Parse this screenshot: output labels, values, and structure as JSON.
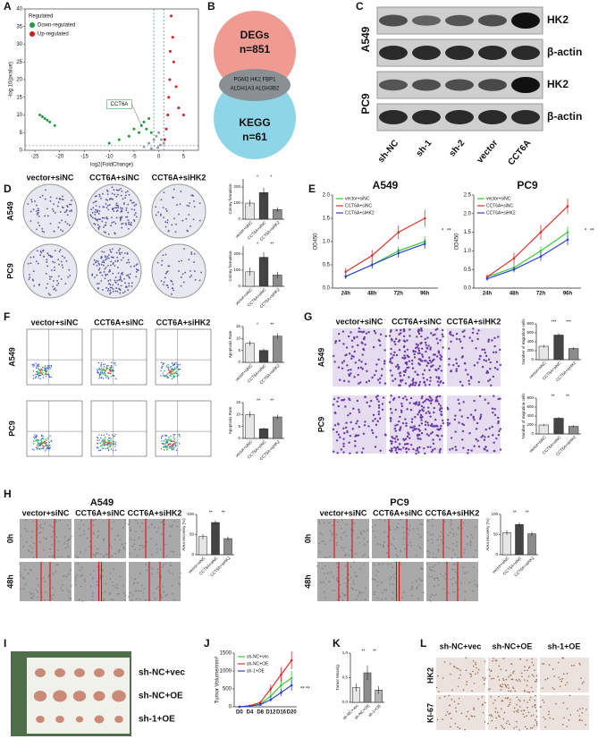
{
  "panel_labels": [
    "A",
    "B",
    "C",
    "D",
    "E",
    "F",
    "G",
    "H",
    "I",
    "J",
    "K",
    "L"
  ],
  "venn": {
    "top": "DEGs",
    "top_n": "n=851",
    "overlap": [
      "PGM2 HK2 FBP1",
      "ALDH1A3 ALDH3B2"
    ],
    "bottom": "KEGG",
    "bottom_n": "n=61"
  },
  "western": {
    "cell_lines": [
      "A549",
      "PC9"
    ],
    "bands": [
      "HK2",
      "β-actin",
      "HK2",
      "β-actin"
    ],
    "lanes": [
      "sh-NC",
      "sh-1",
      "sh-2",
      "vector",
      "CCT6A"
    ]
  },
  "colony": {
    "columns": [
      "vector+siNC",
      "CCT6A+siNC",
      "CCT6A+siHK2"
    ],
    "rows": [
      "A549",
      "PC9"
    ]
  },
  "flow": {
    "columns": [
      "vector+siNC",
      "CCT6A+siNC",
      "CCT6A+siHK2"
    ],
    "rows": [
      "A549",
      "PC9"
    ]
  },
  "migration": {
    "columns": [
      "vector+siNC",
      "CCT6A+siNC",
      "CCT6A+siHK2"
    ],
    "rows": [
      "A549",
      "PC9"
    ]
  },
  "wound": {
    "groups": [
      "A549",
      "PC9"
    ],
    "columns": [
      "vector+siNC",
      "CCT6A+siNC",
      "CCT6A+siHK2"
    ],
    "rows": [
      "0h",
      "48h"
    ]
  },
  "xenograft": {
    "rows": [
      "sh-NC+vec",
      "sh-NC+OE",
      "sh-1+OE"
    ]
  },
  "ihc": {
    "columns": [
      "sh-NC+vec",
      "sh-NC+OE",
      "sh-1+OE"
    ],
    "rows": [
      "HK2",
      "KI-67"
    ]
  },
  "chart_data": [
    {
      "type": "scatter",
      "xlabel": "log2(FoldChange)",
      "ylabel": "-log 10(pvalue)",
      "legend_title": "Regulated",
      "annotation": "CCT6A",
      "xlim": [
        -27,
        8
      ],
      "xticks": [
        -25,
        -20,
        -15,
        -10,
        -5,
        0,
        5
      ],
      "ylim": [
        0,
        40
      ],
      "yticks": [
        0,
        5,
        10,
        15,
        20,
        25,
        30,
        35,
        40
      ],
      "vlines": [
        -1,
        1
      ],
      "hline": 1.3,
      "series": [
        {
          "color": "#9a9a9a",
          "x": [
            -3,
            -2,
            -1,
            -0.5,
            0,
            0.5,
            1,
            -1.5,
            0.3,
            -0.2
          ],
          "values": [
            1,
            2,
            3,
            4,
            5,
            3,
            2,
            0.5,
            1.5,
            0.8
          ]
        },
        {
          "name": "Down-regulated",
          "color": "#1f9a3c",
          "x": [
            -24,
            -23.5,
            -23,
            -22.5,
            -22,
            -21,
            -10,
            -8,
            -6,
            -5,
            -4,
            -3.5,
            -3,
            -2.5,
            -2,
            -1.5
          ],
          "values": [
            10,
            9.5,
            9,
            8.5,
            8,
            7,
            2,
            3,
            4,
            6,
            5,
            7,
            8,
            6,
            9,
            5
          ]
        },
        {
          "name": "Up-regulated",
          "color": "#d7191c",
          "x": [
            1.2,
            1.5,
            1.8,
            2,
            2.2,
            2.5,
            3,
            3.5,
            4,
            5,
            2.8,
            2.3
          ],
          "values": [
            3,
            6,
            10,
            15,
            20,
            38,
            25,
            18,
            12,
            10,
            32,
            28
          ]
        }
      ]
    },
    {
      "type": "bar",
      "ylabel": "Colony formation",
      "categories": [
        "vector+siNC",
        "CCT6A+siNC",
        "CCT6A+siHK2"
      ],
      "values": [
        100,
        165,
        60
      ],
      "errors": [
        20,
        30,
        15
      ],
      "colors": [
        "#e6e6e6",
        "#444444",
        "#8c8c8c"
      ],
      "ylim": [
        0,
        250
      ],
      "yticks": [
        0,
        100,
        200
      ],
      "annotations": [
        "*",
        "*"
      ]
    },
    {
      "type": "bar",
      "ylabel": "Colony formation",
      "categories": [
        "vector+siNC",
        "CCT6A+siNC",
        "CCT6A+siHK2"
      ],
      "values": [
        90,
        180,
        70
      ],
      "errors": [
        25,
        30,
        20
      ],
      "colors": [
        "#e6e6e6",
        "#444444",
        "#8c8c8c"
      ],
      "ylim": [
        0,
        250
      ],
      "yticks": [
        0,
        100,
        200
      ],
      "annotations": [
        "*",
        "**"
      ]
    },
    {
      "type": "line",
      "title": "A549",
      "ylabel": "OD450",
      "categories": [
        "24h",
        "48h",
        "72h",
        "96h"
      ],
      "ylim": [
        0,
        2
      ],
      "yticks": [
        {
          "value": 0,
          "label": "0.0"
        },
        {
          "value": 0.5,
          "label": "0.5"
        },
        {
          "value": 1,
          "label": "1.0"
        },
        {
          "value": 1.5,
          "label": "1.5"
        },
        {
          "value": 2,
          "label": "2.0"
        }
      ],
      "annotations": [
        "*",
        "**"
      ],
      "series": [
        {
          "name": "vector+siNC",
          "color": "#33cc33",
          "values": [
            0.25,
            0.5,
            0.8,
            1.0
          ],
          "errors": [
            0.05,
            0.08,
            0.1,
            0.12
          ]
        },
        {
          "name": "CCT6A+siNC",
          "color": "#e0302a",
          "values": [
            0.35,
            0.7,
            1.2,
            1.5
          ],
          "errors": [
            0.08,
            0.12,
            0.15,
            0.18
          ]
        },
        {
          "name": "CCT6A+siHK2",
          "color": "#2b3fd6",
          "values": [
            0.25,
            0.5,
            0.75,
            0.95
          ],
          "errors": [
            0.05,
            0.08,
            0.1,
            0.1
          ]
        }
      ]
    },
    {
      "type": "line",
      "title": "PC9",
      "ylabel": "OD450",
      "categories": [
        "24h",
        "48h",
        "72h",
        "96h"
      ],
      "ylim": [
        0,
        2.5
      ],
      "yticks": [
        {
          "value": 0,
          "label": "0.0"
        },
        {
          "value": 0.5,
          "label": "0.5"
        },
        {
          "value": 1,
          "label": "1.0"
        },
        {
          "value": 1.5,
          "label": "1.5"
        },
        {
          "value": 2,
          "label": "2.0"
        },
        {
          "value": 2.5,
          "label": "2.5"
        }
      ],
      "annotations": [
        "*",
        "**"
      ],
      "series": [
        {
          "name": "vector+siNC",
          "color": "#33cc33",
          "values": [
            0.3,
            0.55,
            1.0,
            1.5
          ],
          "errors": [
            0.05,
            0.1,
            0.12,
            0.15
          ]
        },
        {
          "name": "CCT6A+siNC",
          "color": "#e0302a",
          "values": [
            0.3,
            0.8,
            1.5,
            2.2
          ],
          "errors": [
            0.06,
            0.15,
            0.2,
            0.2
          ]
        },
        {
          "name": "CCT6A+siHK2",
          "color": "#2b3fd6",
          "values": [
            0.25,
            0.5,
            0.85,
            1.3
          ],
          "errors": [
            0.05,
            0.08,
            0.12,
            0.15
          ]
        }
      ]
    },
    {
      "type": "bar",
      "ylabel": "Apoptosis Rate",
      "categories": [
        "vector+siNC",
        "CCT6A+siNC",
        "CCT6A+siHK2"
      ],
      "values": [
        8,
        5,
        11
      ],
      "errors": [
        1,
        0.8,
        1.2
      ],
      "colors": [
        "#e6e6e6",
        "#444444",
        "#8c8c8c"
      ],
      "ylim": [
        0,
        15
      ],
      "yticks": [
        0,
        5,
        10,
        15
      ],
      "annotations": [
        "*",
        "**"
      ]
    },
    {
      "type": "bar",
      "ylabel": "Apoptosis Rate",
      "categories": [
        "vector+siNC",
        "CCT6A+siNC",
        "CCT6A+siHK2"
      ],
      "values": [
        10,
        4,
        9
      ],
      "errors": [
        1.2,
        0.6,
        1
      ],
      "colors": [
        "#e6e6e6",
        "#444444",
        "#8c8c8c"
      ],
      "ylim": [
        0,
        15
      ],
      "yticks": [
        0,
        5,
        10,
        15
      ],
      "annotations": [
        "**",
        "**"
      ]
    },
    {
      "type": "bar",
      "ylabel": "Number of migration cells",
      "categories": [
        "vector+siNC",
        "CCT6A+siNC",
        "CCT6A+siHK2"
      ],
      "values": [
        300,
        550,
        250
      ],
      "errors": [
        30,
        40,
        30
      ],
      "colors": [
        "#e6e6e6",
        "#444444",
        "#8c8c8c"
      ],
      "ylim": [
        0,
        800
      ],
      "yticks": [
        0,
        200,
        400,
        600,
        800
      ],
      "annotations": [
        "***",
        "***"
      ]
    },
    {
      "type": "bar",
      "ylabel": "Number of migration cells",
      "categories": [
        "vector+siNC",
        "CCT6A+siNC",
        "CCT6A+siHK2"
      ],
      "values": [
        200,
        350,
        170
      ],
      "errors": [
        25,
        30,
        25
      ],
      "colors": [
        "#e6e6e6",
        "#444444",
        "#8c8c8c"
      ],
      "ylim": [
        0,
        800
      ],
      "yticks": [
        0,
        200,
        400,
        600,
        800
      ],
      "annotations": [
        "**",
        "**"
      ]
    },
    {
      "type": "bar",
      "ylabel": "Area recovery (%)",
      "categories": [
        "vector+siNC",
        "CCT6A+siNC",
        "CCT6A+siHK2"
      ],
      "values": [
        45,
        80,
        40
      ],
      "errors": [
        6,
        5,
        5
      ],
      "colors": [
        "#e6e6e6",
        "#444444",
        "#8c8c8c"
      ],
      "ylim": [
        0,
        100
      ],
      "yticks": [
        0,
        50,
        100
      ],
      "annotations": [
        "**",
        "**"
      ]
    },
    {
      "type": "bar",
      "ylabel": "Area recovery (%)",
      "categories": [
        "vector+siNC",
        "CCT6A+siNC",
        "CCT6A+siHK2"
      ],
      "values": [
        55,
        75,
        52
      ],
      "errors": [
        6,
        5,
        5
      ],
      "colors": [
        "#e6e6e6",
        "#444444",
        "#8c8c8c"
      ],
      "ylim": [
        0,
        100
      ],
      "yticks": [
        0,
        50,
        100
      ],
      "annotations": [
        "**",
        "**"
      ]
    },
    {
      "type": "line",
      "ylabel": "Tumor Volume/mm³",
      "categories": [
        "D0",
        "D4",
        "D8",
        "D12",
        "D16",
        "D20"
      ],
      "ylim": [
        0,
        1500
      ],
      "yticks": [
        0,
        500,
        1000,
        1500
      ],
      "annotations": [
        "**",
        "**"
      ],
      "series": [
        {
          "name": "sh-NC+vec",
          "color": "#33cc33",
          "values": [
            0,
            20,
            80,
            300,
            600,
            800
          ],
          "errors": [
            0,
            10,
            30,
            80,
            150,
            200
          ]
        },
        {
          "name": "sh-NC+OE",
          "color": "#e0302a",
          "values": [
            0,
            30,
            120,
            500,
            900,
            1300
          ],
          "errors": [
            0,
            10,
            40,
            120,
            200,
            250
          ]
        },
        {
          "name": "sh-1+OE",
          "color": "#2b3fd6",
          "values": [
            0,
            20,
            60,
            200,
            400,
            600
          ],
          "errors": [
            0,
            8,
            20,
            60,
            100,
            150
          ]
        }
      ]
    },
    {
      "type": "bar",
      "ylabel": "Tumor Mass/g",
      "categories": [
        "sh-NC+vec",
        "sh-NC+OE",
        "sh-1+OE"
      ],
      "values": [
        0.3,
        0.6,
        0.25
      ],
      "errors": [
        0.08,
        0.15,
        0.08
      ],
      "colors": [
        "#e6e6e6",
        "#8c8c8c",
        "#b5b5b5"
      ],
      "ylim": [
        0,
        1
      ],
      "yticks": [
        {
          "value": 0,
          "label": "0.0"
        },
        {
          "value": 0.5,
          "label": "0.5"
        },
        {
          "value": 1,
          "label": "1.0"
        }
      ],
      "annotations": [
        "**",
        "**"
      ]
    }
  ]
}
